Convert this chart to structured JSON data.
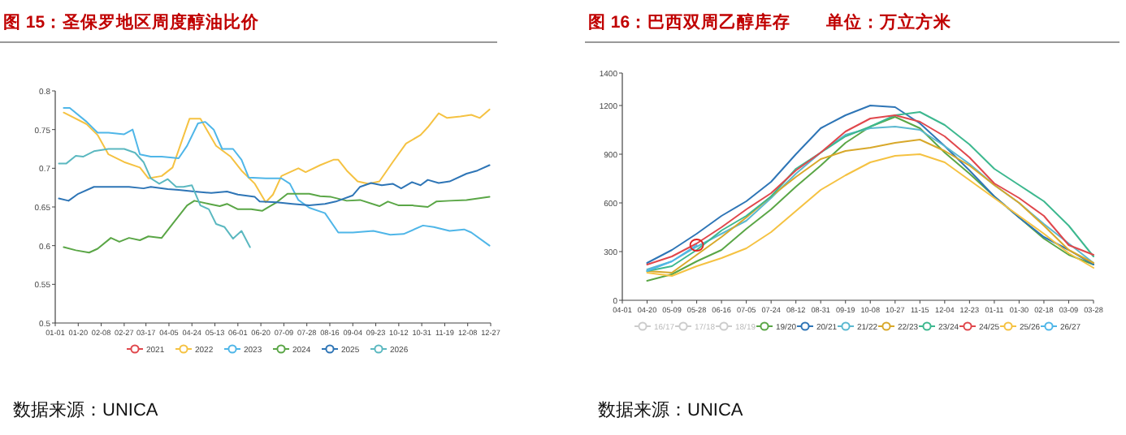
{
  "chart_data": [
    {
      "type": "line",
      "title": "图 15：圣保罗地区周度醇油比价",
      "legend": "bottom",
      "xlim": [
        "--01-01",
        "--12-27"
      ],
      "ylim": [
        0.5,
        0.8
      ],
      "yticks": [
        0.5,
        0.55,
        0.6,
        0.65,
        0.7,
        0.75,
        0.8
      ],
      "xticks": [
        {
          "value": "--01-01",
          "label": "01-01"
        },
        {
          "value": "--01-20",
          "label": "01-20"
        },
        {
          "value": "--02-08",
          "label": "02-08"
        },
        {
          "value": "--02-27",
          "label": "02-27"
        },
        {
          "value": "--03-17",
          "label": "03-17"
        },
        {
          "value": "--04-05",
          "label": "04-05"
        },
        {
          "value": "--04-24",
          "label": "04-24"
        },
        {
          "value": "--05-13",
          "label": "05-13"
        },
        {
          "value": "--06-01",
          "label": "06-01"
        },
        {
          "value": "--06-20",
          "label": "06-20"
        },
        {
          "value": "--07-09",
          "label": "07-09"
        },
        {
          "value": "--07-28",
          "label": "07-28"
        },
        {
          "value": "--08-16",
          "label": "08-16"
        },
        {
          "value": "--09-04",
          "label": "09-04"
        },
        {
          "value": "--09-23",
          "label": "09-23"
        },
        {
          "value": "--10-12",
          "label": "10-12"
        },
        {
          "value": "--10-31",
          "label": "10-31"
        },
        {
          "value": "--11-19",
          "label": "11-19"
        },
        {
          "value": "--12-08",
          "label": "12-08"
        },
        {
          "value": "--12-27",
          "label": "12-27"
        }
      ],
      "annotations": [
        "数据来源：UNICA"
      ],
      "series": [
        {
          "name": "2021",
          "color": "#e0474c"
        },
        {
          "name": "2022",
          "color": "#f5c242",
          "x": [
            "--01-08",
            "--01-27",
            "--02-05",
            "--02-14",
            "--02-27",
            "--03-12",
            "--03-19",
            "--03-30",
            "--04-08",
            "--04-22",
            "--05-01",
            "--05-14",
            "--05-26",
            "--06-04",
            "--06-15",
            "--06-24",
            "--06-30",
            "--07-07",
            "--07-21",
            "--07-27",
            "--08-08",
            "--08-19",
            "--08-23",
            "--08-30",
            "--09-08",
            "--09-17",
            "--09-26",
            "--10-07",
            "--10-18",
            "--10-30",
            "--11-05",
            "--11-14",
            "--11-21",
            "--12-02",
            "--12-11",
            "--12-18",
            "--12-26"
          ],
          "values": [
            0.772,
            0.757,
            0.743,
            0.718,
            0.708,
            0.701,
            0.687,
            0.69,
            0.701,
            0.764,
            0.764,
            0.729,
            0.715,
            0.697,
            0.68,
            0.656,
            0.666,
            0.69,
            0.7,
            0.695,
            0.704,
            0.711,
            0.711,
            0.697,
            0.683,
            0.68,
            0.683,
            0.708,
            0.732,
            0.743,
            0.753,
            0.771,
            0.765,
            0.767,
            0.769,
            0.765,
            0.776
          ]
        },
        {
          "name": "2023",
          "color": "#4fb6e8",
          "x": [
            "--01-08",
            "--01-13",
            "--01-27",
            "--02-05",
            "--02-14",
            "--02-27",
            "--03-06",
            "--03-12",
            "--03-21",
            "--03-30",
            "--04-13",
            "--04-20",
            "--04-29",
            "--05-05",
            "--05-12",
            "--05-19",
            "--05-28",
            "--06-04",
            "--06-10",
            "--06-24",
            "--07-07",
            "--07-14",
            "--07-21",
            "--07-30",
            "--08-12",
            "--08-23",
            "--09-04",
            "--09-21",
            "--10-05",
            "--10-16",
            "--11-01",
            "--11-10",
            "--11-23",
            "--12-05",
            "--12-11",
            "--12-26"
          ],
          "values": [
            0.778,
            0.778,
            0.76,
            0.746,
            0.746,
            0.744,
            0.75,
            0.718,
            0.715,
            0.715,
            0.713,
            0.729,
            0.758,
            0.76,
            0.75,
            0.725,
            0.725,
            0.711,
            0.688,
            0.687,
            0.687,
            0.68,
            0.659,
            0.649,
            0.642,
            0.617,
            0.617,
            0.619,
            0.614,
            0.615,
            0.626,
            0.624,
            0.619,
            0.621,
            0.617,
            0.6
          ]
        },
        {
          "name": "2024",
          "color": "#5aa646",
          "x": [
            "--01-08",
            "--01-18",
            "--01-29",
            "--02-05",
            "--02-16",
            "--02-23",
            "--03-03",
            "--03-12",
            "--03-19",
            "--03-30",
            "--04-08",
            "--04-20",
            "--04-26",
            "--05-08",
            "--05-17",
            "--05-23",
            "--06-01",
            "--06-12",
            "--06-21",
            "--07-03",
            "--07-12",
            "--07-21",
            "--07-30",
            "--08-08",
            "--08-17",
            "--08-30",
            "--09-10",
            "--09-26",
            "--10-03",
            "--10-12",
            "--10-23",
            "--11-05",
            "--11-12",
            "--11-23",
            "--12-07",
            "--12-26"
          ],
          "values": [
            0.598,
            0.594,
            0.591,
            0.596,
            0.61,
            0.605,
            0.61,
            0.607,
            0.612,
            0.61,
            0.628,
            0.652,
            0.658,
            0.654,
            0.651,
            0.654,
            0.647,
            0.647,
            0.645,
            0.656,
            0.667,
            0.667,
            0.667,
            0.664,
            0.663,
            0.658,
            0.659,
            0.651,
            0.657,
            0.652,
            0.652,
            0.65,
            0.657,
            0.658,
            0.659,
            0.663
          ]
        },
        {
          "name": "2025",
          "color": "#2e75b6",
          "x": [
            "--01-04",
            "--01-12",
            "--01-20",
            "--02-02",
            "--02-14",
            "--03-03",
            "--03-15",
            "--03-21",
            "--04-04",
            "--04-13",
            "--04-26",
            "--05-10",
            "--05-23",
            "--06-01",
            "--06-15",
            "--06-19",
            "--07-03",
            "--07-16",
            "--07-30",
            "--08-12",
            "--08-21",
            "--09-04",
            "--09-10",
            "--09-19",
            "--09-28",
            "--10-07",
            "--10-14",
            "--10-23",
            "--10-30",
            "--11-05",
            "--11-14",
            "--11-23",
            "--12-07",
            "--12-16",
            "--12-26"
          ],
          "values": [
            0.661,
            0.658,
            0.667,
            0.676,
            0.676,
            0.676,
            0.674,
            0.676,
            0.673,
            0.672,
            0.67,
            0.668,
            0.67,
            0.666,
            0.663,
            0.657,
            0.656,
            0.654,
            0.652,
            0.654,
            0.657,
            0.665,
            0.676,
            0.681,
            0.678,
            0.68,
            0.674,
            0.682,
            0.678,
            0.685,
            0.681,
            0.683,
            0.693,
            0.697,
            0.704
          ]
        },
        {
          "name": "2026",
          "color": "#5bb8c0",
          "x": [
            "--01-04",
            "--01-10",
            "--01-18",
            "--01-24",
            "--02-02",
            "--02-14",
            "--02-27",
            "--03-08",
            "--03-15",
            "--03-21",
            "--03-28",
            "--04-04",
            "--04-11",
            "--04-17",
            "--04-24",
            "--05-01",
            "--05-08",
            "--05-14",
            "--05-21",
            "--05-28",
            "--06-04",
            "--06-11"
          ],
          "values": [
            0.706,
            0.706,
            0.716,
            0.715,
            0.722,
            0.725,
            0.725,
            0.72,
            0.708,
            0.687,
            0.68,
            0.686,
            0.676,
            0.676,
            0.678,
            0.652,
            0.647,
            0.628,
            0.624,
            0.609,
            0.619,
            0.598
          ]
        }
      ]
    },
    {
      "type": "line",
      "title": "图 16：巴西双周乙醇库存",
      "subtitle": "单位：万立方米",
      "legend": "bottom",
      "categories": [
        "04-01",
        "04-20",
        "05-09",
        "05-28",
        "06-16",
        "07-05",
        "07-24",
        "08-12",
        "08-31",
        "09-19",
        "10-08",
        "10-27",
        "11-15",
        "12-04",
        "12-23",
        "01-11",
        "01-30",
        "02-18",
        "03-09",
        "03-28"
      ],
      "ylim": [
        0,
        1400
      ],
      "yticks": [
        0,
        300,
        600,
        900,
        1200,
        1400
      ],
      "annotations": [
        "数据来源：UNICA"
      ],
      "series": [
        {
          "name": "16/17",
          "color": "#cccccc",
          "values": [
            null,
            null,
            null,
            null,
            null,
            null,
            null,
            null,
            null,
            null,
            null,
            null,
            null,
            null,
            null,
            null,
            null,
            null,
            null,
            null
          ]
        },
        {
          "name": "17/18",
          "color": "#cccccc",
          "values": [
            null,
            null,
            null,
            null,
            null,
            null,
            null,
            null,
            null,
            null,
            null,
            null,
            null,
            null,
            null,
            null,
            null,
            null,
            null,
            null
          ]
        },
        {
          "name": "18/19",
          "color": "#cccccc",
          "values": [
            null,
            null,
            null,
            null,
            null,
            null,
            null,
            null,
            null,
            null,
            null,
            null,
            null,
            null,
            null,
            null,
            null,
            null,
            null,
            null
          ]
        },
        {
          "name": "19/20",
          "color": "#5aa646",
          "values": [
            null,
            120,
            160,
            240,
            310,
            440,
            560,
            700,
            830,
            970,
            1070,
            1130,
            1060,
            910,
            780,
            640,
            510,
            380,
            280,
            220
          ]
        },
        {
          "name": "20/21",
          "color": "#2e75b6",
          "values": [
            null,
            230,
            310,
            410,
            520,
            610,
            730,
            900,
            1060,
            1140,
            1200,
            1190,
            1090,
            950,
            800,
            640,
            510,
            390,
            310,
            220
          ]
        },
        {
          "name": "21/22",
          "color": "#5bb8d0",
          "values": [
            null,
            190,
            240,
            330,
            410,
            490,
            630,
            780,
            910,
            1020,
            1060,
            1070,
            1050,
            950,
            840,
            710,
            600,
            470,
            350,
            230
          ]
        },
        {
          "name": "22/23",
          "color": "#d8a82a",
          "values": [
            null,
            180,
            170,
            280,
            390,
            510,
            640,
            760,
            870,
            920,
            940,
            970,
            990,
            920,
            830,
            710,
            600,
            460,
            310,
            230
          ]
        },
        {
          "name": "23/24",
          "color": "#3db88f",
          "values": [
            null,
            180,
            210,
            310,
            430,
            520,
            640,
            810,
            910,
            1010,
            1070,
            1140,
            1160,
            1080,
            960,
            810,
            710,
            610,
            460,
            270
          ]
        },
        {
          "name": "24/25",
          "color": "#e0474c",
          "values": [
            null,
            220,
            270,
            350,
            450,
            560,
            660,
            800,
            910,
            1040,
            1120,
            1140,
            1100,
            1010,
            880,
            720,
            630,
            520,
            340,
            280
          ]
        },
        {
          "name": "25/26",
          "color": "#f5c242",
          "values": [
            null,
            170,
            150,
            210,
            260,
            320,
            420,
            550,
            680,
            770,
            850,
            890,
            900,
            850,
            740,
            630,
            520,
            410,
            290,
            200
          ]
        },
        {
          "name": "26/27",
          "color": "#4fb6e8",
          "values": [
            null,
            180,
            240,
            340,
            null,
            null,
            null,
            null,
            null,
            null,
            null,
            null,
            null,
            null,
            null,
            null,
            null,
            null,
            null,
            null
          ]
        }
      ]
    }
  ]
}
